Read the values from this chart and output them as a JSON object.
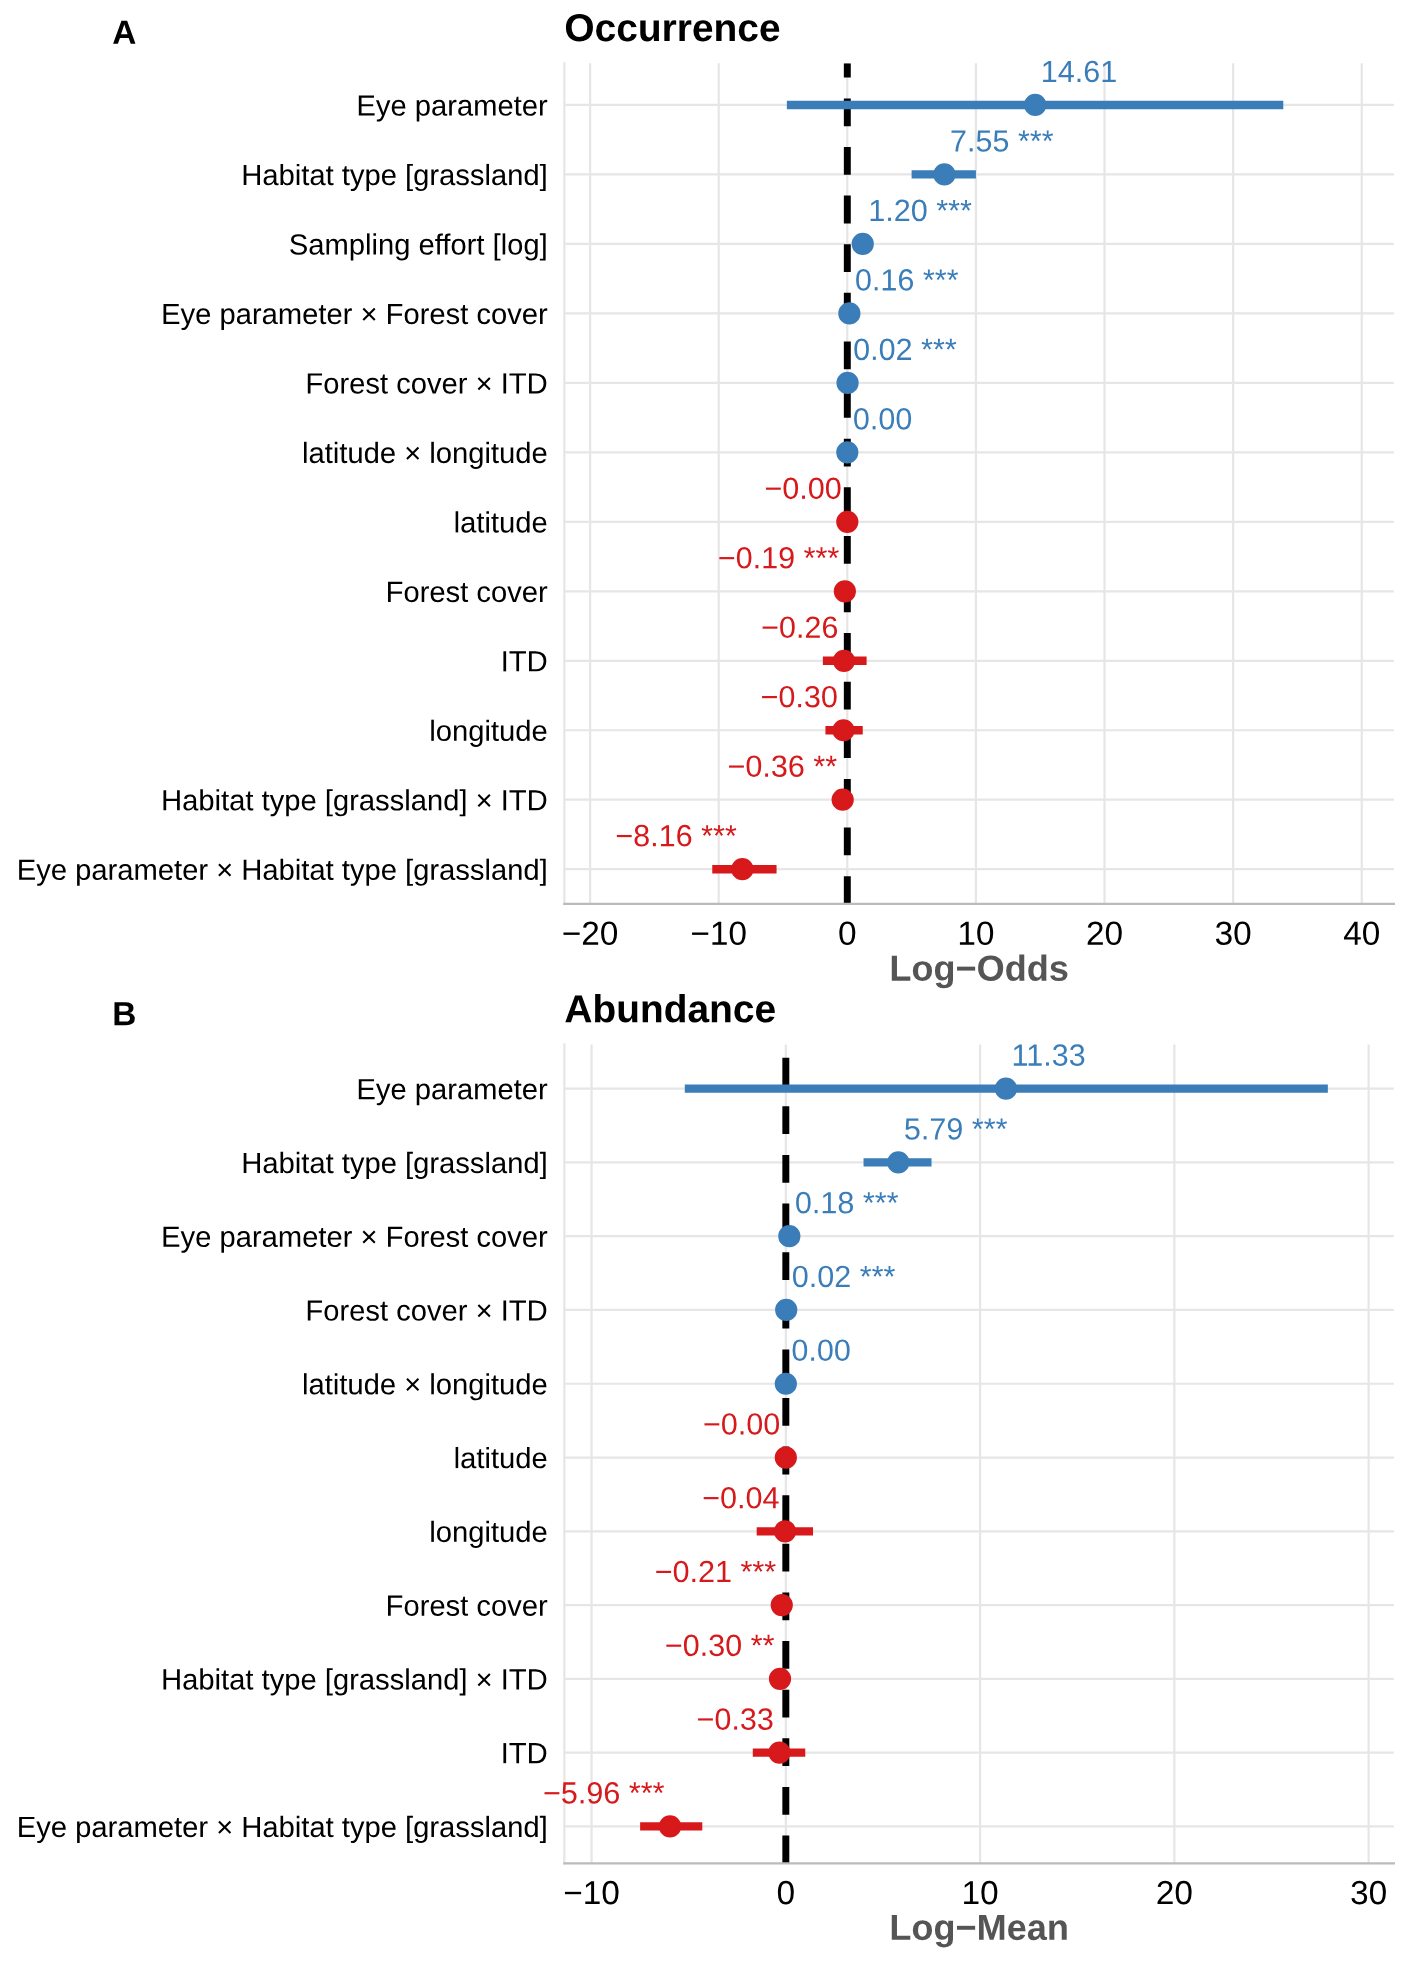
{
  "chart_data": [
    {
      "type": "scatter",
      "orientation": "horizontal",
      "title": "Occurrence",
      "xlabel": "Log−Odds",
      "annotations": [
        "A"
      ],
      "categories": [
        "Eye parameter",
        "Habitat type [grassland]",
        "Sampling effort [log]",
        "Eye parameter × Forest cover",
        "Forest cover × ITD",
        "latitude × longitude",
        "latitude",
        "Forest cover",
        "ITD",
        "longitude",
        "Habitat type [grassland] × ITD",
        "Eye parameter × Habitat type [grassland]"
      ],
      "series": [
        {
          "values": [
            14.61,
            7.55,
            1.2,
            0.16,
            0.02,
            0.0,
            -0.0,
            -0.19,
            -0.26,
            -0.3,
            -0.36,
            -8.16
          ],
          "colors": [
            "#3a7db8",
            "#3a7db8",
            "#3a7db8",
            "#3a7db8",
            "#3a7db8",
            "#3a7db8",
            "#d7191c",
            "#d7191c",
            "#d7191c",
            "#d7191c",
            "#d7191c",
            "#d7191c"
          ],
          "errors": [
            [
              -4.7,
              33.9
            ],
            [
              5.0,
              10.0
            ],
            null,
            null,
            null,
            null,
            null,
            null,
            [
              -1.9,
              1.5
            ],
            [
              -1.7,
              1.2
            ],
            null,
            [
              -10.5,
              -5.5
            ]
          ],
          "value_labels": [
            "14.61",
            "7.55 ***",
            "1.20 ***",
            "0.16 ***",
            "0.02 ***",
            "0.00",
            "−0.00",
            "−0.19 ***",
            "−0.26",
            "−0.30",
            "−0.36 **",
            "−8.16 ***"
          ]
        }
      ],
      "xlim": [
        -22,
        42.5
      ],
      "xticks": [
        -20,
        -10,
        0,
        10,
        20,
        30,
        40
      ],
      "ref_lines": [
        {
          "axis": "x",
          "value": 0,
          "color": "#000000",
          "line_style": "dashed"
        }
      ],
      "grid": true,
      "marker": "circle"
    },
    {
      "type": "scatter",
      "orientation": "horizontal",
      "title": "Abundance",
      "xlabel": "Log−Mean",
      "annotations": [
        "B"
      ],
      "categories": [
        "Eye parameter",
        "Habitat type [grassland]",
        "Eye parameter × Forest cover",
        "Forest cover × ITD",
        "latitude × longitude",
        "latitude",
        "longitude",
        "Forest cover",
        "Habitat type [grassland] × ITD",
        "ITD",
        "Eye parameter × Habitat type [grassland]"
      ],
      "series": [
        {
          "values": [
            11.33,
            5.79,
            0.18,
            0.02,
            0.0,
            -0.0,
            -0.04,
            -0.21,
            -0.3,
            -0.33,
            -5.96
          ],
          "colors": [
            "#3a7db8",
            "#3a7db8",
            "#3a7db8",
            "#3a7db8",
            "#3a7db8",
            "#d7191c",
            "#d7191c",
            "#d7191c",
            "#d7191c",
            "#d7191c",
            "#d7191c"
          ],
          "errors": [
            [
              -5.2,
              27.9
            ],
            [
              4.0,
              7.5
            ],
            null,
            null,
            null,
            null,
            [
              -1.5,
              1.4
            ],
            null,
            null,
            [
              -1.7,
              1.0
            ],
            [
              -7.5,
              -4.3
            ]
          ],
          "value_labels": [
            "11.33",
            "5.79 ***",
            "0.18 ***",
            "0.02 ***",
            "0.00",
            "−0.00",
            "−0.04",
            "−0.21 ***",
            "−0.30 **",
            "−0.33",
            "−5.96 ***"
          ]
        }
      ],
      "xlim": [
        -11.4,
        31.3
      ],
      "xticks": [
        -10,
        0,
        10,
        20,
        30
      ],
      "ref_lines": [
        {
          "axis": "x",
          "value": 0,
          "color": "#000000",
          "line_style": "dashed"
        }
      ],
      "grid": true,
      "marker": "circle"
    }
  ]
}
